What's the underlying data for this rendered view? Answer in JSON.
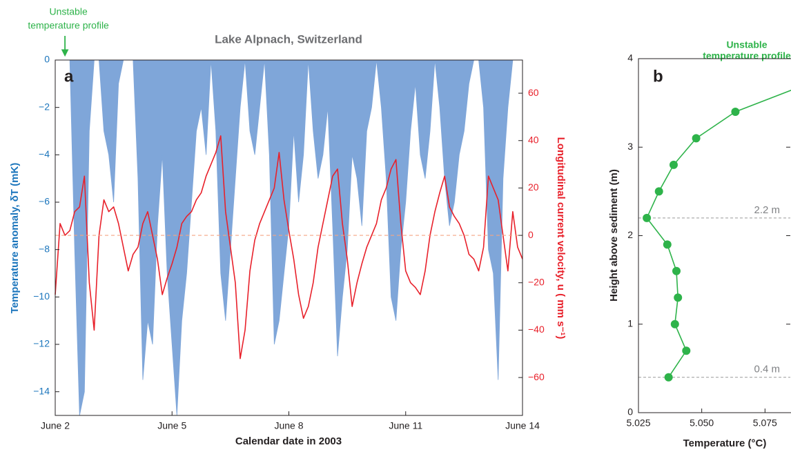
{
  "chart_data": [
    {
      "type": "combo",
      "title": "Lake Alpnach, Switzerland",
      "panel_label": "a",
      "x_label": "Calendar date in 2003",
      "y_label": "Temperature anomaly, δT (mK)",
      "y2_label": "Longitudinal current velocity, u ( mm s⁻¹)",
      "annotation": {
        "lines": [
          "Unstable",
          "temperature profile"
        ],
        "x": 2.25
      },
      "xlim": [
        2,
        14
      ],
      "xticks": [
        {
          "value": 2,
          "label": "June 2"
        },
        {
          "value": 5,
          "label": "June 5"
        },
        {
          "value": 8,
          "label": "June 8"
        },
        {
          "value": 11,
          "label": "June 11"
        },
        {
          "value": 14,
          "label": "June 14"
        }
      ],
      "ylim": [
        -15,
        0
      ],
      "yticks": [
        0,
        {
          "value": -2,
          "label": "−2"
        },
        {
          "value": -4,
          "label": "−4"
        },
        {
          "value": -6,
          "label": "−6"
        },
        {
          "value": -8,
          "label": "−8"
        },
        {
          "value": -10,
          "label": "−10"
        },
        {
          "value": -12,
          "label": "−12"
        },
        {
          "value": -14,
          "label": "−14"
        }
      ],
      "y2lim": [
        -76,
        74
      ],
      "y2ticks": [
        {
          "value": -60,
          "label": "−60"
        },
        {
          "value": -40,
          "label": "−40"
        },
        {
          "value": -20,
          "label": "−20"
        },
        0,
        20,
        40,
        60
      ],
      "reference_line_y2": 0,
      "x": [
        2,
        2.125,
        2.25,
        2.375,
        2.5,
        2.625,
        2.75,
        2.875,
        3,
        3.125,
        3.25,
        3.375,
        3.5,
        3.625,
        3.75,
        3.875,
        4,
        4.125,
        4.25,
        4.375,
        4.5,
        4.625,
        4.75,
        4.875,
        5,
        5.125,
        5.25,
        5.375,
        5.5,
        5.625,
        5.75,
        5.875,
        6,
        6.125,
        6.25,
        6.375,
        6.5,
        6.625,
        6.75,
        6.875,
        7,
        7.125,
        7.25,
        7.375,
        7.5,
        7.625,
        7.75,
        7.875,
        8,
        8.125,
        8.25,
        8.375,
        8.5,
        8.625,
        8.75,
        8.875,
        9,
        9.125,
        9.25,
        9.375,
        9.5,
        9.625,
        9.75,
        9.875,
        10,
        10.125,
        10.25,
        10.375,
        10.5,
        10.625,
        10.75,
        10.875,
        11,
        11.125,
        11.25,
        11.375,
        11.5,
        11.625,
        11.75,
        11.875,
        12,
        12.125,
        12.25,
        12.375,
        12.5,
        12.625,
        12.75,
        12.875,
        13,
        13.125,
        13.25,
        13.375,
        13.5,
        13.625,
        13.75,
        13.875,
        14
      ],
      "series": [
        {
          "type": "area",
          "axis": "y",
          "color": "#7fa6d9",
          "values": [
            0,
            0,
            0,
            0,
            -8,
            -15,
            -14,
            -3,
            0,
            0,
            -3,
            -4,
            -6,
            -1,
            0,
            0,
            0,
            -5,
            -13.5,
            -11,
            -12,
            -7,
            -4,
            -9,
            -12,
            -15,
            -11,
            -9,
            -6,
            -3,
            -2,
            -4,
            0,
            -3,
            -9,
            -11,
            -8,
            -5,
            -2,
            0,
            -3,
            -4,
            -2,
            0,
            -4,
            -12,
            -11,
            -9,
            -7,
            -3,
            -6,
            -4,
            0,
            -3,
            -5,
            -4,
            -2,
            -7,
            -12.5,
            -10,
            -8,
            -4,
            -5,
            -7,
            -3,
            -2,
            0,
            -2,
            -5,
            -10,
            -11,
            -8,
            -6,
            -3,
            -1,
            -4,
            -5,
            -3,
            0,
            -2,
            -5,
            -7,
            -6,
            -4,
            -3,
            -1,
            0,
            0,
            -2,
            -8,
            -9,
            -13.5,
            -5,
            -2,
            0,
            0,
            0
          ]
        },
        {
          "type": "line",
          "axis": "y2",
          "color": "#e8202a",
          "values": [
            -25,
            5,
            0,
            2,
            10,
            12,
            25,
            -20,
            -40,
            0,
            15,
            10,
            12,
            5,
            -5,
            -15,
            -8,
            -5,
            5,
            10,
            0,
            -10,
            -25,
            -18,
            -12,
            -5,
            5,
            8,
            10,
            15,
            18,
            25,
            30,
            35,
            42,
            10,
            -5,
            -20,
            -52,
            -40,
            -15,
            -2,
            5,
            10,
            15,
            20,
            35,
            15,
            2,
            -10,
            -25,
            -35,
            -30,
            -20,
            -5,
            5,
            15,
            25,
            28,
            5,
            -10,
            -30,
            -20,
            -12,
            -5,
            0,
            5,
            15,
            20,
            28,
            32,
            5,
            -15,
            -20,
            -22,
            -25,
            -15,
            0,
            10,
            18,
            25,
            12,
            8,
            5,
            0,
            -8,
            -10,
            -15,
            -5,
            25,
            20,
            15,
            0,
            -15,
            10,
            -5,
            -10
          ]
        }
      ]
    },
    {
      "type": "line",
      "panel_label": "b",
      "annotation": [
        "Unstable",
        "temperature profile"
      ],
      "x_label": "Temperature (°C)",
      "y_label": "Height above sediment (m)",
      "xlim": [
        5.025,
        5.085
      ],
      "xticks": [
        5.025,
        {
          "value": 5.05,
          "label": "5.050"
        },
        5.075
      ],
      "ylim": [
        0,
        4
      ],
      "yticks": [
        0,
        1,
        2,
        3,
        4
      ],
      "reference_lines": [
        {
          "value": 2.2,
          "label": "2.2 m"
        },
        {
          "value": 0.4,
          "label": "0.4 m"
        }
      ],
      "color": "#2eb34a",
      "x": [
        5.0369,
        5.0439,
        5.0394,
        5.0406,
        5.04,
        5.0364,
        5.0283,
        5.0331,
        5.0389,
        5.0478,
        5.0633,
        5.095
      ],
      "values": [
        0.4,
        0.7,
        1.0,
        1.3,
        1.6,
        1.9,
        2.2,
        2.5,
        2.8,
        3.1,
        3.4,
        3.75
      ]
    }
  ]
}
